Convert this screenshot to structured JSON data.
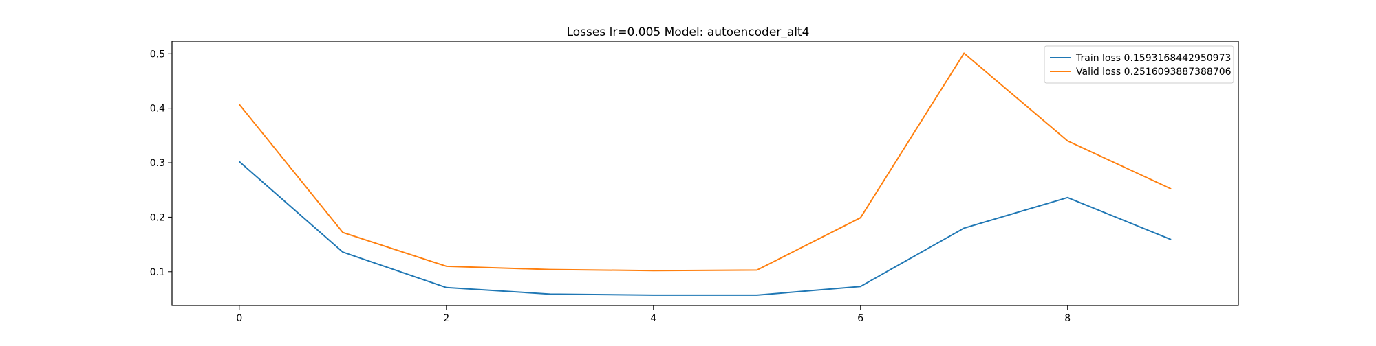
{
  "chart_data": {
    "type": "line",
    "title": "Losses lr=0.005 Model: autoencoder_alt4",
    "xlabel": "",
    "ylabel": "",
    "x": [
      0,
      1,
      2,
      3,
      4,
      5,
      6,
      7,
      8,
      9
    ],
    "xlim": [
      -0.65,
      9.65
    ],
    "ylim": [
      0.038,
      0.523
    ],
    "x_ticks": [
      "0",
      "2",
      "4",
      "6",
      "8"
    ],
    "y_ticks": [
      "0.1",
      "0.2",
      "0.3",
      "0.4",
      "0.5"
    ],
    "grid": false,
    "legend_position": "top-right",
    "series": [
      {
        "name": "Train loss 0.1593168442950973",
        "color": "#1f77b4",
        "values": [
          0.302,
          0.136,
          0.071,
          0.059,
          0.057,
          0.057,
          0.073,
          0.18,
          0.236,
          0.159
        ]
      },
      {
        "name": "Valid loss 0.2516093887388706",
        "color": "#ff7f0e",
        "values": [
          0.407,
          0.172,
          0.11,
          0.104,
          0.102,
          0.103,
          0.199,
          0.501,
          0.34,
          0.252
        ]
      }
    ]
  }
}
